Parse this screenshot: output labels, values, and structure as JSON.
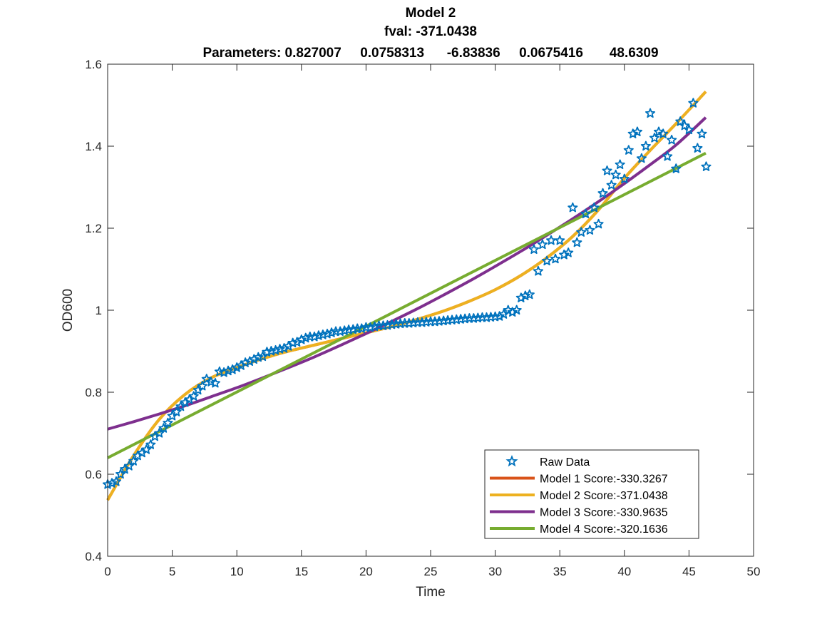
{
  "chart_data": {
    "type": "line",
    "title": [
      "Model 2",
      "fval: -371.0438",
      "Parameters: 0.827007     0.0758313      -6.83836     0.0675416       48.6309"
    ],
    "xlabel": "Time",
    "ylabel": "OD600",
    "xlim": [
      0,
      50
    ],
    "ylim": [
      0.4,
      1.6
    ],
    "xticks": [
      0,
      5,
      10,
      15,
      20,
      25,
      30,
      35,
      40,
      45,
      50
    ],
    "xtick_labels": [
      "0",
      "5",
      "10",
      "15",
      "20",
      "25",
      "30",
      "35",
      "40",
      "45",
      "50"
    ],
    "yticks": [
      0.4,
      0.6,
      0.8,
      1.0,
      1.2,
      1.4,
      1.6
    ],
    "ytick_labels": [
      "0.4",
      "0.6",
      "0.8",
      "1",
      "1.2",
      "1.4",
      "1.6"
    ],
    "grid": false,
    "legend_position": "bottom-right",
    "raw_data": {
      "name": "Raw Data",
      "color": "#0072BD",
      "marker": "pentagram",
      "x": [
        0.0,
        0.33,
        0.66,
        1.0,
        1.33,
        1.66,
        2.0,
        2.33,
        2.66,
        3.0,
        3.33,
        3.66,
        4.0,
        4.33,
        4.66,
        5.0,
        5.33,
        5.66,
        6.0,
        6.33,
        6.66,
        7.0,
        7.33,
        7.66,
        8.0,
        8.33,
        8.66,
        9.0,
        9.33,
        9.66,
        10.0,
        10.33,
        10.66,
        11.0,
        11.33,
        11.66,
        12.0,
        12.33,
        12.66,
        13.0,
        13.33,
        13.66,
        14.0,
        14.33,
        14.66,
        15.0,
        15.33,
        15.66,
        16.0,
        16.33,
        16.66,
        17.0,
        17.33,
        17.66,
        18.0,
        18.33,
        18.66,
        19.0,
        19.33,
        19.66,
        20.0,
        20.33,
        20.66,
        21.0,
        21.33,
        21.66,
        22.0,
        22.33,
        22.66,
        23.0,
        23.33,
        23.66,
        24.0,
        24.33,
        24.66,
        25.0,
        25.33,
        25.66,
        26.0,
        26.33,
        26.66,
        27.0,
        27.33,
        27.66,
        28.0,
        28.33,
        28.66,
        29.0,
        29.33,
        29.66,
        30.0,
        30.33,
        30.66,
        31.0,
        31.33,
        31.66,
        32.0,
        32.33,
        32.66,
        33.0,
        33.33,
        33.66,
        34.0,
        34.33,
        34.66,
        35.0,
        35.33,
        35.66,
        36.0,
        36.33,
        36.66,
        37.0,
        37.33,
        37.66,
        38.0,
        38.33,
        38.66,
        39.0,
        39.33,
        39.66,
        40.0,
        40.33,
        40.66,
        41.0,
        41.33,
        41.66,
        42.0,
        42.33,
        42.66,
        43.0,
        43.33,
        43.66,
        44.0,
        44.33,
        44.66,
        45.0,
        45.33,
        45.66,
        46.0,
        46.33
      ],
      "y": [
        0.575,
        0.578,
        0.582,
        0.6,
        0.612,
        0.62,
        0.632,
        0.645,
        0.652,
        0.66,
        0.672,
        0.692,
        0.7,
        0.712,
        0.725,
        0.742,
        0.752,
        0.765,
        0.775,
        0.782,
        0.79,
        0.805,
        0.815,
        0.832,
        0.825,
        0.822,
        0.85,
        0.848,
        0.852,
        0.855,
        0.86,
        0.865,
        0.872,
        0.875,
        0.88,
        0.885,
        0.887,
        0.898,
        0.9,
        0.902,
        0.905,
        0.907,
        0.912,
        0.92,
        0.922,
        0.928,
        0.932,
        0.935,
        0.935,
        0.938,
        0.94,
        0.942,
        0.945,
        0.948,
        0.948,
        0.95,
        0.952,
        0.953,
        0.955,
        0.955,
        0.958,
        0.958,
        0.96,
        0.962,
        0.962,
        0.963,
        0.965,
        0.966,
        0.967,
        0.968,
        0.968,
        0.969,
        0.97,
        0.97,
        0.971,
        0.972,
        0.972,
        0.973,
        0.974,
        0.975,
        0.976,
        0.977,
        0.978,
        0.979,
        0.98,
        0.98,
        0.981,
        0.982,
        0.982,
        0.983,
        0.984,
        0.985,
        0.99,
        1.0,
        0.995,
        1.0,
        1.03,
        1.035,
        1.038,
        1.148,
        1.095,
        1.16,
        1.12,
        1.17,
        1.125,
        1.17,
        1.135,
        1.14,
        1.25,
        1.165,
        1.19,
        1.235,
        1.195,
        1.25,
        1.21,
        1.285,
        1.34,
        1.305,
        1.33,
        1.355,
        1.32,
        1.39,
        1.43,
        1.435,
        1.37,
        1.4,
        1.48,
        1.42,
        1.435,
        1.43,
        1.375,
        1.415,
        1.345,
        1.46,
        1.45,
        1.44,
        1.505,
        1.395,
        1.43,
        1.35
      ]
    },
    "series": [
      {
        "name": "Model 1 Score:-330.3267",
        "color": "#D95319",
        "x": [
          0,
          2,
          4,
          6,
          8,
          10,
          12,
          14,
          16,
          18,
          20,
          22,
          24,
          26,
          28,
          30,
          32,
          34,
          36,
          38,
          40,
          42,
          44,
          46.3
        ],
        "y": [
          0.537,
          0.645,
          0.734,
          0.795,
          0.835,
          0.86,
          0.882,
          0.9,
          0.915,
          0.93,
          0.945,
          0.96,
          0.978,
          0.998,
          1.022,
          1.05,
          1.085,
          1.128,
          1.18,
          1.245,
          1.322,
          1.39,
          1.455,
          1.533
        ]
      },
      {
        "name": "Model 2 Score:-371.0438",
        "color": "#EDB120",
        "x": [
          0,
          2,
          4,
          6,
          8,
          10,
          12,
          14,
          16,
          18,
          20,
          22,
          24,
          26,
          28,
          30,
          32,
          34,
          36,
          38,
          40,
          42,
          44,
          46.3
        ],
        "y": [
          0.537,
          0.645,
          0.734,
          0.795,
          0.835,
          0.86,
          0.882,
          0.9,
          0.915,
          0.93,
          0.945,
          0.96,
          0.978,
          0.998,
          1.022,
          1.05,
          1.085,
          1.128,
          1.18,
          1.245,
          1.322,
          1.39,
          1.455,
          1.533
        ]
      },
      {
        "name": "Model 3 Score:-330.9635",
        "color": "#7E2F8E",
        "x": [
          0,
          2,
          4,
          6,
          8,
          10,
          12,
          14,
          16,
          18,
          20,
          22,
          24,
          26,
          28,
          30,
          32,
          34,
          36,
          38,
          40,
          42,
          44,
          46.3
        ],
        "y": [
          0.71,
          0.728,
          0.747,
          0.767,
          0.789,
          0.811,
          0.835,
          0.86,
          0.886,
          0.914,
          0.943,
          0.973,
          1.004,
          1.037,
          1.071,
          1.107,
          1.144,
          1.183,
          1.223,
          1.265,
          1.309,
          1.355,
          1.403,
          1.47
        ]
      },
      {
        "name": "Model 4 Score:-320.1636",
        "color": "#77AC30",
        "x": [
          0,
          46.3
        ],
        "y": [
          0.64,
          1.383
        ]
      }
    ]
  }
}
